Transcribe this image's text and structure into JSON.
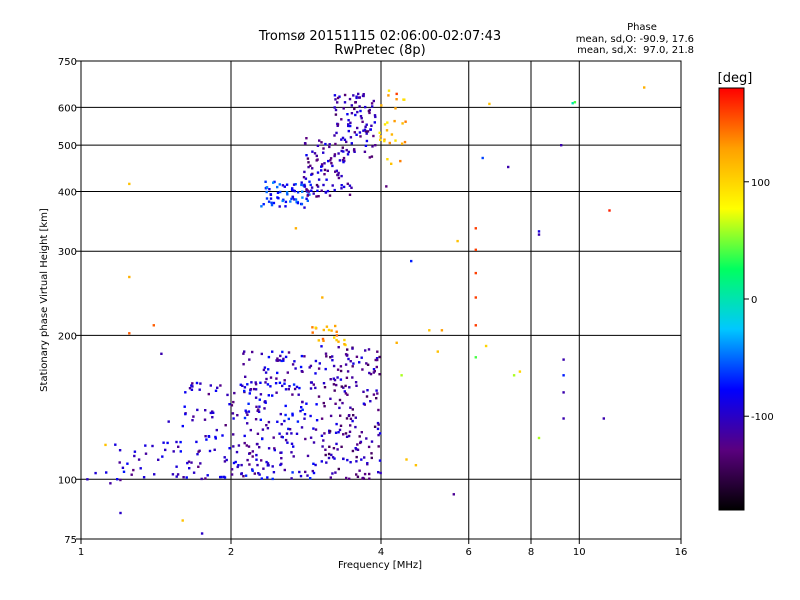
{
  "chart_data": {
    "type": "scatter",
    "title": "Tromsø 20151115 02:06:00-02:07:43",
    "subtitle": "RwPretec (8p)",
    "xlabel": "Frequency [MHz]",
    "ylabel": "Stationary phase Virtual Height [km]",
    "x_scale": "log",
    "y_scale": "log",
    "xlim": [
      1,
      16
    ],
    "ylim": [
      75,
      750
    ],
    "x_ticks": [
      1,
      2,
      4,
      6,
      8,
      10,
      16
    ],
    "y_ticks": [
      75,
      100,
      200,
      300,
      400,
      500,
      600,
      750
    ],
    "grid": true,
    "phase_stats": {
      "heading": "Phase",
      "o_line": "mean, sd,O: -90.9, 17.6",
      "x_line": "mean, sd,X:  97.0, 21.8"
    },
    "colorbar": {
      "label": "[deg]",
      "range": [
        -180,
        180
      ],
      "ticks": [
        100,
        0,
        -100
      ],
      "colormap": [
        "#000000",
        "#5a007f",
        "#0000ff",
        "#00c8ff",
        "#00ff60",
        "#ffff00",
        "#ffa000",
        "#ff0000"
      ]
    },
    "point_clusters": [
      {
        "x_range": [
          2.3,
          2.9
        ],
        "y_range": [
          370,
          420
        ],
        "phase": -70,
        "count": 70
      },
      {
        "x_range": [
          2.8,
          3.5
        ],
        "y_range": [
          390,
          520
        ],
        "phase": -110,
        "count": 90
      },
      {
        "x_range": [
          3.2,
          3.9
        ],
        "y_range": [
          470,
          640
        ],
        "phase": -110,
        "count": 90
      },
      {
        "x_range": [
          3.9,
          4.5
        ],
        "y_range": [
          450,
          640
        ],
        "phase": 110,
        "count": 25
      },
      {
        "x_range": [
          1.6,
          2.3
        ],
        "y_range": [
          100,
          160
        ],
        "phase": -105,
        "count": 110
      },
      {
        "x_range": [
          2.1,
          3.0
        ],
        "y_range": [
          100,
          185
        ],
        "phase": -95,
        "count": 180
      },
      {
        "x_range": [
          3.0,
          4.0
        ],
        "y_range": [
          100,
          190
        ],
        "phase": -115,
        "count": 180
      },
      {
        "x_range": [
          1.1,
          1.6
        ],
        "y_range": [
          98,
          120
        ],
        "phase": -100,
        "count": 35
      },
      {
        "x_range": [
          2.9,
          3.4
        ],
        "y_range": [
          190,
          210
        ],
        "phase": 120,
        "count": 20
      }
    ],
    "points": [
      {
        "x": 1.03,
        "y": 100,
        "phase": -100
      },
      {
        "x": 1.07,
        "y": 103,
        "phase": -95
      },
      {
        "x": 1.12,
        "y": 118,
        "phase": 110
      },
      {
        "x": 1.2,
        "y": 85,
        "phase": -100
      },
      {
        "x": 1.25,
        "y": 415,
        "phase": 110
      },
      {
        "x": 1.25,
        "y": 265,
        "phase": 120
      },
      {
        "x": 1.25,
        "y": 202,
        "phase": 150
      },
      {
        "x": 1.4,
        "y": 210,
        "phase": 150
      },
      {
        "x": 1.45,
        "y": 183,
        "phase": -110
      },
      {
        "x": 1.5,
        "y": 132,
        "phase": -100
      },
      {
        "x": 1.6,
        "y": 82,
        "phase": 110
      },
      {
        "x": 1.75,
        "y": 77,
        "phase": -100
      },
      {
        "x": 2.7,
        "y": 335,
        "phase": 120
      },
      {
        "x": 3.05,
        "y": 240,
        "phase": 120
      },
      {
        "x": 3.6,
        "y": 640,
        "phase": -110
      },
      {
        "x": 4.1,
        "y": 410,
        "phase": -130
      },
      {
        "x": 4.15,
        "y": 650,
        "phase": 90
      },
      {
        "x": 4.3,
        "y": 640,
        "phase": 160
      },
      {
        "x": 4.3,
        "y": 193,
        "phase": 120
      },
      {
        "x": 4.4,
        "y": 165,
        "phase": 60
      },
      {
        "x": 4.5,
        "y": 110,
        "phase": 110
      },
      {
        "x": 4.7,
        "y": 107,
        "phase": 110
      },
      {
        "x": 4.6,
        "y": 286,
        "phase": -70
      },
      {
        "x": 5.0,
        "y": 205,
        "phase": 110
      },
      {
        "x": 5.2,
        "y": 185,
        "phase": 110
      },
      {
        "x": 5.3,
        "y": 205,
        "phase": 130
      },
      {
        "x": 5.6,
        "y": 93,
        "phase": -120
      },
      {
        "x": 5.7,
        "y": 315,
        "phase": 110
      },
      {
        "x": 6.2,
        "y": 335,
        "phase": 160
      },
      {
        "x": 6.2,
        "y": 302,
        "phase": 160
      },
      {
        "x": 6.2,
        "y": 270,
        "phase": 160
      },
      {
        "x": 6.2,
        "y": 240,
        "phase": 160
      },
      {
        "x": 6.2,
        "y": 210,
        "phase": 160
      },
      {
        "x": 6.2,
        "y": 180,
        "phase": 40
      },
      {
        "x": 6.4,
        "y": 470,
        "phase": -60
      },
      {
        "x": 6.5,
        "y": 190,
        "phase": 100
      },
      {
        "x": 6.6,
        "y": 610,
        "phase": 110
      },
      {
        "x": 7.2,
        "y": 450,
        "phase": -110
      },
      {
        "x": 7.4,
        "y": 165,
        "phase": 60
      },
      {
        "x": 7.6,
        "y": 168,
        "phase": 100
      },
      {
        "x": 8.3,
        "y": 330,
        "phase": -90
      },
      {
        "x": 8.3,
        "y": 325,
        "phase": -110
      },
      {
        "x": 8.3,
        "y": 122,
        "phase": 60
      },
      {
        "x": 9.2,
        "y": 500,
        "phase": -110
      },
      {
        "x": 9.3,
        "y": 178,
        "phase": -110
      },
      {
        "x": 9.3,
        "y": 165,
        "phase": -70
      },
      {
        "x": 9.3,
        "y": 152,
        "phase": -110
      },
      {
        "x": 9.3,
        "y": 134,
        "phase": -110
      },
      {
        "x": 9.7,
        "y": 612,
        "phase": 0
      },
      {
        "x": 9.8,
        "y": 615,
        "phase": 40
      },
      {
        "x": 11.2,
        "y": 134,
        "phase": -110
      },
      {
        "x": 11.5,
        "y": 365,
        "phase": 170
      },
      {
        "x": 13.5,
        "y": 660,
        "phase": 120
      }
    ]
  }
}
